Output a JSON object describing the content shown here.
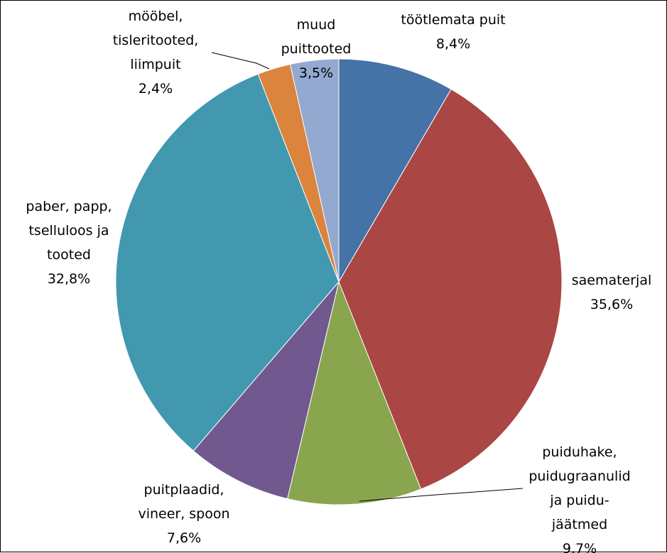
{
  "chart_data": {
    "type": "pie",
    "slices": [
      {
        "label": "töötlemata puit",
        "value": 8.4,
        "value_label": "8,4%",
        "color": "#4572A7"
      },
      {
        "label": "saematerjal",
        "value": 35.6,
        "value_label": "35,6%",
        "color": "#AA4643"
      },
      {
        "label": "puiduhake, puidugraanulid ja puidu-jäätmed",
        "value": 9.7,
        "value_label": "9,7%",
        "color": "#89A54E"
      },
      {
        "label": "puitplaadid, vineer, spoon",
        "value": 7.6,
        "value_label": "7,6%",
        "color": "#71588F"
      },
      {
        "label": "paber, papp, tselluloos ja tooted",
        "value": 32.8,
        "value_label": "32,8%",
        "color": "#4198AF"
      },
      {
        "label": "mööbel, tisleritooted, liimpuit",
        "value": 2.4,
        "value_label": "2,4%",
        "color": "#DB843D"
      },
      {
        "label": "muud puittooted",
        "value": 3.5,
        "value_label": "3,5%",
        "color": "#93A9CF"
      }
    ],
    "label_lines": [
      [
        "töötlemata puit",
        "8,4%"
      ],
      [
        "saematerjal",
        "35,6%"
      ],
      [
        "puiduhake,",
        "puidugraanulid",
        "ja puidu-",
        "jäätmed",
        "9,7%"
      ],
      [
        "puitplaadid,",
        "vineer, spoon",
        "7,6%"
      ],
      [
        "paber, papp,",
        "tselluloos ja",
        "tooted",
        "32,8%"
      ],
      [
        "mööbel,",
        "tisleritooted,",
        "liimpuit",
        "2,4%"
      ],
      [
        "muud",
        "puittooted",
        "3,5%"
      ]
    ],
    "start": "12 o'clock",
    "direction": "clockwise",
    "legend": "none"
  }
}
